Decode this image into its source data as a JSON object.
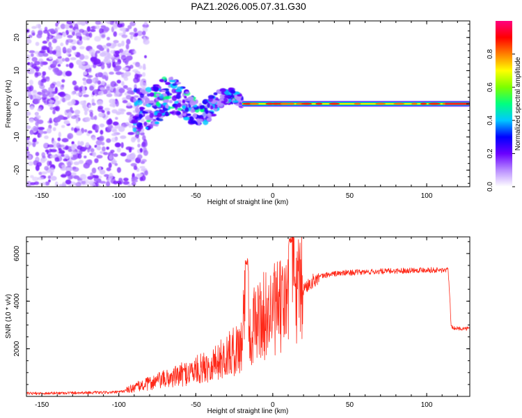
{
  "chart_data": [
    {
      "type": "heatmap",
      "title": "PAZ1.2026.005.07.31.G30",
      "xlabel": "Height of straight line (km)",
      "ylabel": "Frequency (Hz)",
      "xlim": [
        -160,
        128
      ],
      "ylim": [
        -25,
        25
      ],
      "xticks": [
        -150,
        -100,
        -50,
        0,
        50,
        100
      ],
      "yticks": [
        -20,
        -10,
        0,
        10,
        20
      ],
      "colorbar": {
        "label": "Normalized spectral amplitude",
        "range": [
          0,
          1
        ],
        "ticks": [
          "0.0",
          "0.2",
          "0.4",
          "0.6",
          "0.8"
        ],
        "colors": [
          "#ffffff",
          "#b88cff",
          "#6a00ff",
          "#0000ff",
          "#00c8ff",
          "#00ff80",
          "#7cff00",
          "#ffff00",
          "#ff8000",
          "#ff0000",
          "#ff0080"
        ]
      },
      "features": {
        "noise_region_km": [
          -160,
          -90
        ],
        "transition_region_km": [
          -90,
          -20
        ],
        "stable_tone_region_km": [
          -20,
          128
        ],
        "tone_frequency_hz": 0
      }
    },
    {
      "type": "line",
      "title": "",
      "xlabel": "Height of straight line (km)",
      "ylabel": "SNR (10 * v/v)",
      "xlim": [
        -160,
        128
      ],
      "ylim": [
        0,
        6700
      ],
      "xticks": [
        -150,
        -100,
        -50,
        0,
        50,
        100
      ],
      "yticks": [
        2000,
        4000,
        6000
      ],
      "color": "#ff2a1a",
      "series": [
        {
          "name": "SNR",
          "x": [
            -160,
            -150,
            -140,
            -130,
            -120,
            -110,
            -100,
            -95,
            -90,
            -85,
            -80,
            -75,
            -70,
            -65,
            -60,
            -55,
            -50,
            -45,
            -40,
            -35,
            -30,
            -25,
            -20,
            -17,
            -15,
            -12,
            -10,
            -5,
            0,
            5,
            10,
            12,
            15,
            20,
            25,
            30,
            35,
            40,
            50,
            60,
            70,
            80,
            90,
            100,
            105,
            110,
            114,
            116,
            120,
            128
          ],
          "values": [
            120,
            130,
            140,
            150,
            160,
            160,
            180,
            250,
            380,
            450,
            550,
            650,
            720,
            800,
            900,
            1000,
            1100,
            1200,
            1350,
            1500,
            1700,
            1900,
            2200,
            5800,
            2500,
            3000,
            3200,
            3400,
            3600,
            3700,
            4000,
            6700,
            4200,
            4500,
            4800,
            5000,
            5100,
            5150,
            5200,
            5220,
            5250,
            5270,
            5300,
            5320,
            5300,
            5300,
            5300,
            2900,
            2850,
            2850
          ]
        }
      ]
    }
  ]
}
